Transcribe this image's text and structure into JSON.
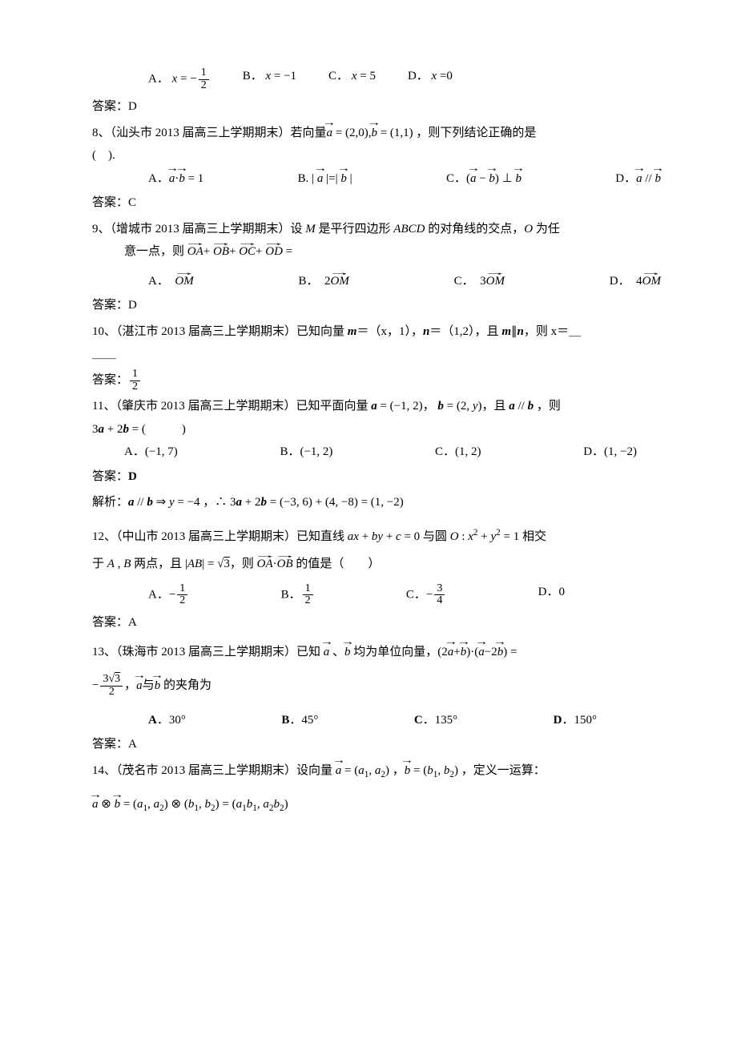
{
  "q7": {
    "options_indent": true,
    "A": "A．",
    "A_math": "<i>x</i> = −",
    "A_frac_n": "1",
    "A_frac_d": "2",
    "B": "B．",
    "B_math": "<i>x</i> = −1",
    "C": "C．",
    "C_math": "<i>x</i> = 5",
    "D": "D．",
    "D_math": "<i>x</i> =0",
    "answer": "答案：D"
  },
  "q8": {
    "stem_pre": "8、（汕头市 2013 届高三上学期期末）若向量",
    "stem_vec1": "a",
    "stem_mid1": " = (2,0),",
    "stem_vec2": "b",
    "stem_mid2": " = (1,1) ，则下列结论正确的是",
    "paren": "(　).",
    "A": "A．",
    "A_v1": "a",
    "A_dot": "·",
    "A_v2": "b",
    "A_eq": " = 1",
    "B": "B. | ",
    "B_v1": "a",
    "B_mid": " |=| ",
    "B_v2": "b",
    "B_end": " |",
    "C": "C．(",
    "C_v1": "a",
    "C_minus": " − ",
    "C_v2": "b",
    "C_perp": ") ⊥ ",
    "C_v3": "b",
    "D": "D．",
    "D_v1": "a",
    "D_par": " // ",
    "D_v2": "b",
    "answer": "答案：C"
  },
  "q9": {
    "stem": "9、（增城市 2013 届高三上学期期末）设 <i>M</i> 是平行四边形 <i>ABCD</i> 的对角线的交点，<i>O</i> 为任",
    "stem2_pre": "意一点，则",
    "oa": "OA",
    "plus": "+",
    "ob": "OB",
    "oc": "OC",
    "od": "OD",
    "eq": "=",
    "A": "A．",
    "Av": "OM",
    "B": "B．",
    "Bn": "2",
    "Bv": "OM",
    "C": "C．",
    "Cn": "3",
    "Cv": "OM",
    "D": "D．",
    "Dn": "4",
    "Dv": "OM",
    "answer": "答案：D"
  },
  "q10": {
    "stem": "10、（湛江市 2013 届高三上学期期末）已知向量 <span class='bi'>m</span>＝（x，1），<span class='bi'>n</span>＝（1,2），且 <span class='bi'>m</span>∥<span class='bi'>n</span>，则 x＝＿",
    "ul": "＿＿",
    "ans_pre": "答案：",
    "frac_n": "1",
    "frac_d": "2"
  },
  "q11": {
    "stem": "11、（肇庆市 2013 届高三上学期期末）已知平面向量 <span class='bi'>a</span> = (−1, 2)， <span class='bi'>b</span> = (2, <i>y</i>)，且 <span class='bi'>a</span> // <span class='bi'>b</span> ，则",
    "line2": "3<span class='bi'>a</span> + 2<span class='bi'>b</span> = (　　　)",
    "A": "A．(−1, 7)",
    "B": "B．(−1, 2)",
    "C": "C．(1, 2)",
    "D": "D．(1, −2)",
    "answer": "答案：<b>D</b>",
    "sol": "解析：<span class='bi'>a</span> // <span class='bi'>b</span> ⇒ <i>y</i> = −4 ，∴ 3<span class='bi'>a</span> + 2<span class='bi'>b</span> = (−3, 6) + (4, −8) = (1, −2)"
  },
  "q12": {
    "stem": "12、（中山市 2013 届高三上学期期末）已知直线 <i>ax</i> + <i>by</i> + <i>c</i> = 0 与圆 <i>O</i> : <i>x</i><sup>2</sup> + <i>y</i><sup>2</sup> = 1 相交",
    "line2_pre": "于 <i>A</i> , <i>B</i> 两点，且 |<i>AB</i>| = √",
    "sqrt": "3",
    "line2_mid": "，则 ",
    "oa": "OA",
    "dot": "·",
    "ob": "OB",
    "line2_end": " 的值是（　　）",
    "A": "A．−",
    "An": "1",
    "Ad": "2",
    "B": "B．",
    "Bn": "1",
    "Bd": "2",
    "C": "C．−",
    "Cn": "3",
    "Cd": "4",
    "D": "D．0",
    "answer": "答案：A"
  },
  "q13": {
    "stem_pre": "13、（珠海市 2013 届高三上学期期末）已知 ",
    "va": "a",
    "comma": " 、",
    "vb": "b",
    "stem_mid": " 均为单位向量，(2",
    "va2": "a",
    "plus": "+",
    "vb2": "b",
    "mid2": ")·(",
    "va3": "a",
    "minus": "−2",
    "vb3": "b",
    "stem_end": ") =",
    "line2_pre": "−",
    "fn": "3√<span class='sq'>3</span>",
    "fd": "2",
    "line2_mid": "，",
    "va4": "a",
    "with": "与",
    "vb4": "b",
    "line2_end": " 的夹角为",
    "A": "<b>A</b>．30°",
    "B": "<b>B</b>．45°",
    "C": "<b>C</b>．135°",
    "D": "<b>D</b>．150°",
    "answer": "答案：A"
  },
  "q14": {
    "stem_pre": "14、（茂名市 2013 届高三上学期期末）设向量 ",
    "va": "a",
    "mid1": " = (<i>a</i><sub>1</sub>, <i>a</i><sub>2</sub>) ，",
    "vb": "b",
    "mid2": " = (<i>b</i><sub>1</sub>, <i>b</i><sub>2</sub>) ，定义一运算：",
    "line2_a": "a",
    "ot": "⊗",
    "line2_b": "b",
    "eq": " = (<i>a</i><sub>1</sub>, <i>a</i><sub>2</sub>) ⊗ (<i>b</i><sub>1</sub>, <i>b</i><sub>2</sub>) = (<i>a</i><sub>1</sub><i>b</i><sub>1</sub>, <i>a</i><sub>2</sub><i>b</i><sub>2</sub>)"
  }
}
